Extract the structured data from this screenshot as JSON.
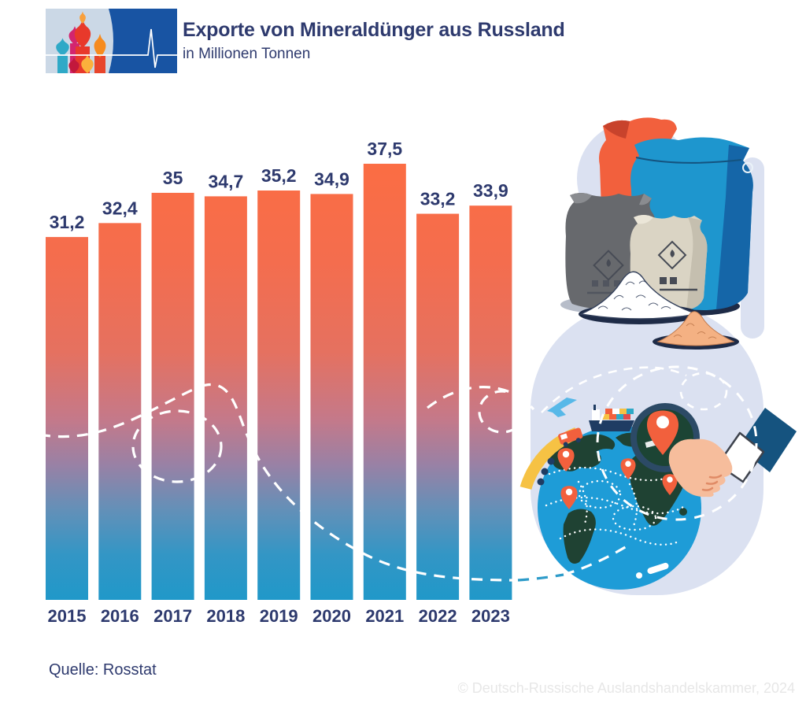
{
  "header": {
    "title": "Exporte von Mineraldünger aus Russland",
    "subtitle": "in Millionen Tonnen"
  },
  "chart_data": {
    "type": "bar",
    "title": "Exporte von Mineraldünger aus Russland",
    "ylabel": "Millionen Tonnen",
    "categories": [
      "2015",
      "2016",
      "2017",
      "2018",
      "2019",
      "2020",
      "2021",
      "2022",
      "2023"
    ],
    "values": [
      31.2,
      32.4,
      35,
      34.7,
      35.2,
      34.9,
      37.5,
      33.2,
      33.9
    ],
    "value_labels": [
      "31,2",
      "32,4",
      "35",
      "34,7",
      "35,2",
      "34,9",
      "37,5",
      "33,2",
      "33,9"
    ],
    "ylim": [
      0,
      40
    ],
    "grid": false,
    "legend": "none",
    "bar_gradient": [
      "#FC6D42",
      "#E57160",
      "#9981A5",
      "#2098C9"
    ]
  },
  "footer": {
    "source": "Quelle: Rosstat",
    "copyright": "© Deutsch-Russische Auslandshandelskammer, 2024"
  },
  "colors": {
    "text_navy": "#2E3A6E",
    "bar_top_orange": "#FC6D42",
    "bar_bottom_blue": "#2098C9",
    "route_blue": "#2D9BC9",
    "lavender_bg": "#DBE1F1",
    "logo_dark_blue": "#1854A3",
    "logo_light_panel": "#CBD8E6",
    "accent_orange": "#F2603D",
    "accent_yellow": "#F6C244",
    "globe_blue": "#1E9CD7",
    "continent_green": "#1F4233"
  },
  "icons": [
    "kremlin-domes-logo",
    "ekg-pulse-line",
    "fertilizer-bags",
    "globe-with-pins",
    "magnifying-glass",
    "airplane",
    "cargo-ship",
    "truck",
    "location-pin",
    "route-dashed-line"
  ]
}
